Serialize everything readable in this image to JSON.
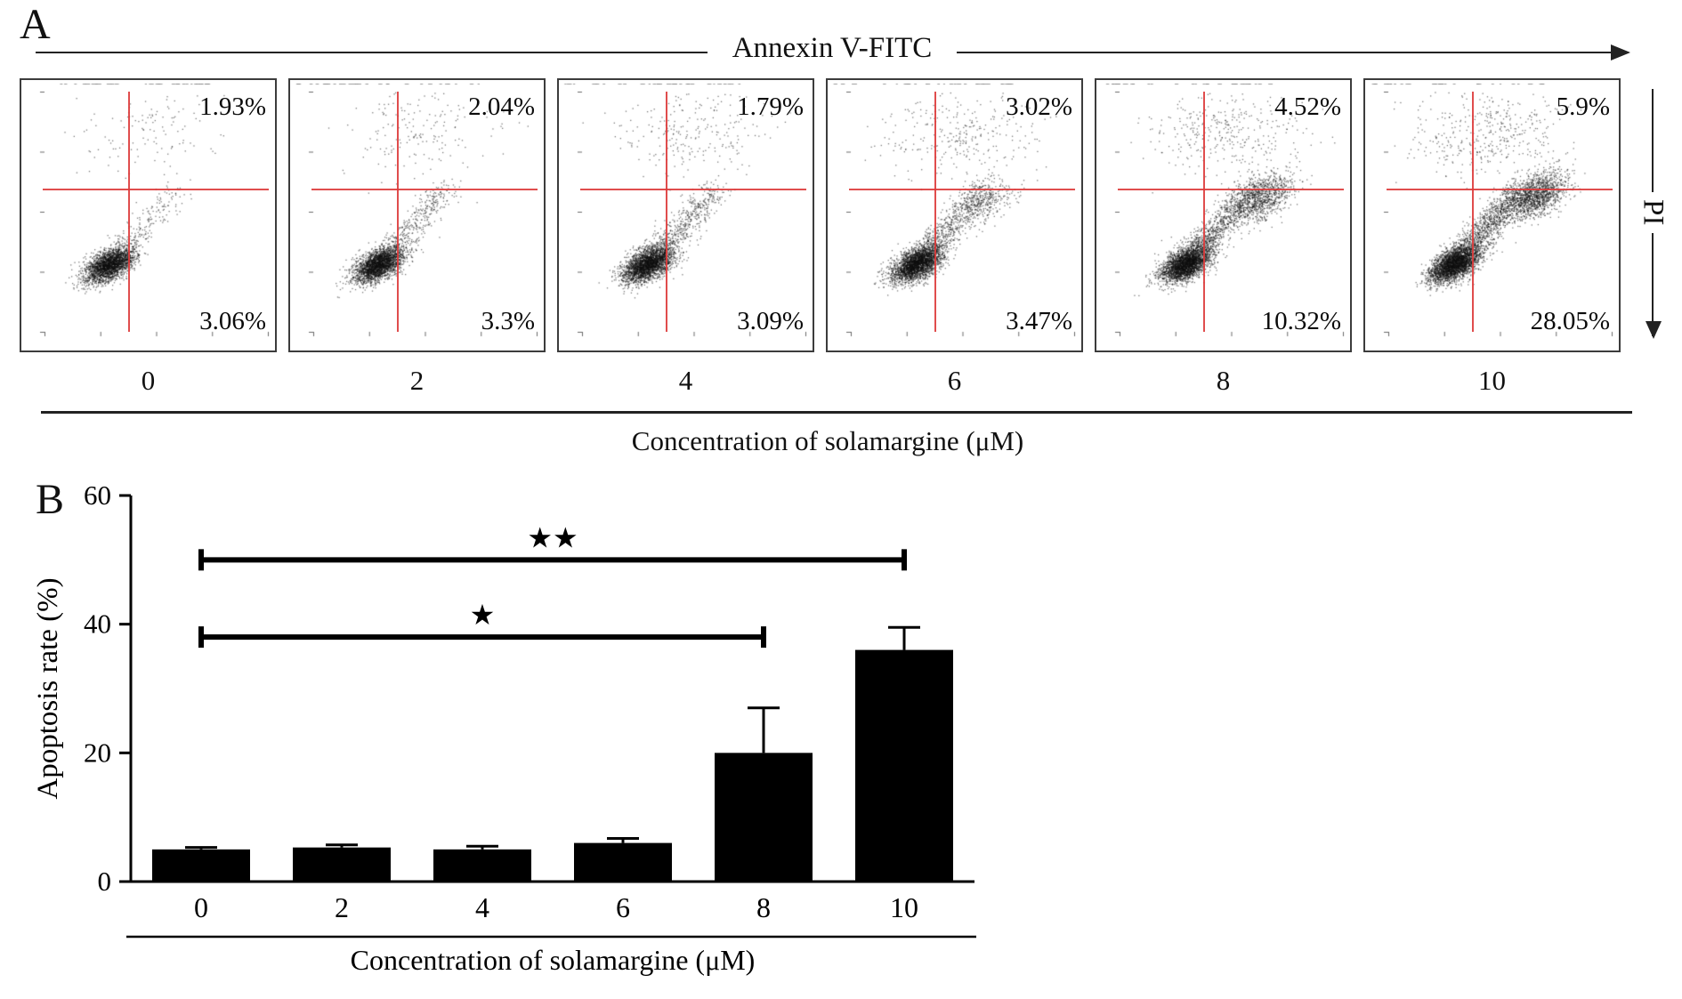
{
  "figure": {
    "panel_a": {
      "label": "A",
      "axis_top_title": "Annexin V-FITC",
      "axis_right_title": "PI",
      "bottom_axis_label": "Concentration of solamargine (μM)",
      "plots": [
        {
          "concentration": "0",
          "upper_right_pct": "1.93%",
          "lower_right_pct": "3.06%"
        },
        {
          "concentration": "2",
          "upper_right_pct": "2.04%",
          "lower_right_pct": "3.3%"
        },
        {
          "concentration": "4",
          "upper_right_pct": "1.79%",
          "lower_right_pct": "3.09%"
        },
        {
          "concentration": "6",
          "upper_right_pct": "3.02%",
          "lower_right_pct": "3.47%"
        },
        {
          "concentration": "8",
          "upper_right_pct": "4.52%",
          "lower_right_pct": "10.32%"
        },
        {
          "concentration": "10",
          "upper_right_pct": "5.9%",
          "lower_right_pct": "28.05%"
        }
      ]
    },
    "panel_b": {
      "label": "B"
    }
  },
  "chart_data": [
    {
      "type": "scatter",
      "title": "Annexin V-FITC vs PI flow cytometry dot plots",
      "xlabel": "Annexin V-FITC",
      "ylabel": "PI",
      "group_axis_label": "Concentration of solamargine (μM)",
      "quadrant_line_color": "#dd3a3a",
      "plots": [
        {
          "concentration_uM": 0,
          "upper_right_pct": 1.93,
          "lower_right_pct": 3.06
        },
        {
          "concentration_uM": 2,
          "upper_right_pct": 2.04,
          "lower_right_pct": 3.3
        },
        {
          "concentration_uM": 4,
          "upper_right_pct": 1.79,
          "lower_right_pct": 3.09
        },
        {
          "concentration_uM": 6,
          "upper_right_pct": 3.02,
          "lower_right_pct": 3.47
        },
        {
          "concentration_uM": 8,
          "upper_right_pct": 4.52,
          "lower_right_pct": 10.32
        },
        {
          "concentration_uM": 10,
          "upper_right_pct": 5.9,
          "lower_right_pct": 28.05
        }
      ]
    },
    {
      "type": "bar",
      "categories": [
        "0",
        "2",
        "4",
        "6",
        "8",
        "10"
      ],
      "values": [
        5,
        5.3,
        5,
        6,
        20,
        36
      ],
      "errors": [
        0.3,
        0.4,
        0.5,
        0.7,
        7,
        3.5
      ],
      "xlabel": "Concentration of solamargine (μM)",
      "ylabel": "Apoptosis rate (%)",
      "ylim": [
        0,
        60
      ],
      "yticks": [
        0,
        20,
        40,
        60
      ],
      "bar_color": "#000000",
      "grid": false,
      "significance": [
        {
          "from_category": "0",
          "to_category": "8",
          "label": "★",
          "y": 38
        },
        {
          "from_category": "0",
          "to_category": "10",
          "label": "★★",
          "y": 50
        }
      ]
    }
  ]
}
